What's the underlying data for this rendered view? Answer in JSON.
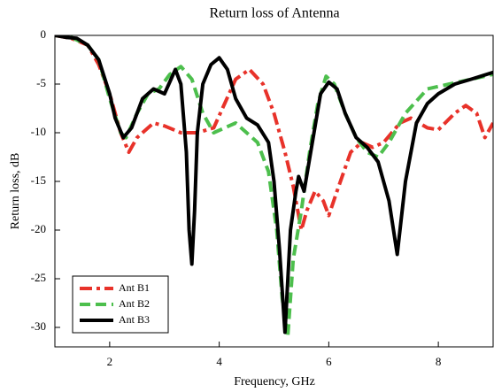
{
  "chart_data": {
    "type": "line",
    "title": "Return loss of Antenna",
    "x_label": "Frequency, GHz",
    "y_label": "Return loss, dB",
    "xlim": [
      1,
      9
    ],
    "xticks": [
      2,
      4,
      6,
      8
    ],
    "ylim": [
      -32,
      0
    ],
    "yticks": [
      0,
      -5,
      -10,
      -15,
      -20,
      -25,
      -30
    ],
    "legend": "lower left",
    "series": [
      {
        "name": "Ant B1",
        "color": "#e8322a",
        "dash": "dashdot",
        "x": [
          1.0,
          1.3,
          1.6,
          1.8,
          2.0,
          2.2,
          2.35,
          2.5,
          2.8,
          3.0,
          3.3,
          3.6,
          3.9,
          4.1,
          4.3,
          4.55,
          4.8,
          5.0,
          5.2,
          5.35,
          5.5,
          5.6,
          5.75,
          5.9,
          6.0,
          6.15,
          6.4,
          6.6,
          6.8,
          7.0,
          7.3,
          7.5,
          7.8,
          8.0,
          8.3,
          8.5,
          8.7,
          8.85,
          9.0
        ],
        "values": [
          0,
          -0.3,
          -1,
          -3,
          -6,
          -10,
          -12,
          -10.5,
          -9,
          -9.3,
          -10,
          -10,
          -9.5,
          -7,
          -4.5,
          -3.5,
          -5,
          -8,
          -12,
          -15.5,
          -20,
          -18,
          -16,
          -17,
          -18.5,
          -16,
          -12,
          -11,
          -11.5,
          -11,
          -9,
          -8.5,
          -9.5,
          -9.7,
          -8,
          -7.2,
          -8,
          -10.5,
          -9
        ]
      },
      {
        "name": "Ant B2",
        "color": "#4dbf4d",
        "dash": "dashed",
        "x": [
          1.0,
          1.3,
          1.6,
          1.8,
          2.0,
          2.2,
          2.3,
          2.5,
          2.7,
          2.9,
          3.1,
          3.3,
          3.5,
          3.7,
          3.9,
          4.1,
          4.3,
          4.5,
          4.7,
          4.9,
          5.05,
          5.15,
          5.25,
          5.35,
          5.5,
          5.65,
          5.8,
          5.95,
          6.1,
          6.3,
          6.5,
          6.7,
          6.9,
          7.1,
          7.4,
          7.8,
          8.2,
          8.6,
          9.0
        ],
        "values": [
          0,
          -0.2,
          -1,
          -2.5,
          -6.5,
          -10,
          -10.5,
          -8,
          -6,
          -5.5,
          -4,
          -3.2,
          -4.5,
          -8,
          -10,
          -9.5,
          -9,
          -10,
          -11,
          -14,
          -20,
          -27,
          -31,
          -23,
          -18,
          -12,
          -7,
          -4.2,
          -5,
          -8,
          -10.5,
          -12,
          -12.5,
          -11,
          -8,
          -5.5,
          -5,
          -4.5,
          -4
        ]
      },
      {
        "name": "Ant B3",
        "color": "#000000",
        "dash": "solid",
        "x": [
          1.0,
          1.2,
          1.4,
          1.6,
          1.8,
          2.0,
          2.1,
          2.25,
          2.4,
          2.6,
          2.8,
          3.0,
          3.2,
          3.3,
          3.4,
          3.45,
          3.5,
          3.55,
          3.6,
          3.7,
          3.85,
          4.0,
          4.15,
          4.3,
          4.5,
          4.7,
          4.9,
          5.0,
          5.1,
          5.2,
          5.3,
          5.4,
          5.45,
          5.55,
          5.7,
          5.85,
          6.0,
          6.15,
          6.3,
          6.5,
          6.7,
          6.9,
          7.1,
          7.25,
          7.4,
          7.6,
          7.8,
          8.0,
          8.3,
          8.6,
          9.0
        ],
        "values": [
          0,
          -0.2,
          -0.3,
          -1,
          -2.5,
          -6,
          -8.5,
          -10.5,
          -9.5,
          -6.5,
          -5.5,
          -6,
          -3.5,
          -5,
          -12,
          -20,
          -23.5,
          -18,
          -10,
          -5,
          -3,
          -2.3,
          -3.5,
          -6.5,
          -8.5,
          -9.2,
          -11,
          -15,
          -22,
          -30.5,
          -20,
          -16,
          -14.5,
          -16,
          -11,
          -6,
          -4.8,
          -5.5,
          -8,
          -10.5,
          -11.5,
          -13,
          -17,
          -22.5,
          -15,
          -9,
          -7,
          -6,
          -5,
          -4.5,
          -3.8
        ]
      }
    ]
  }
}
